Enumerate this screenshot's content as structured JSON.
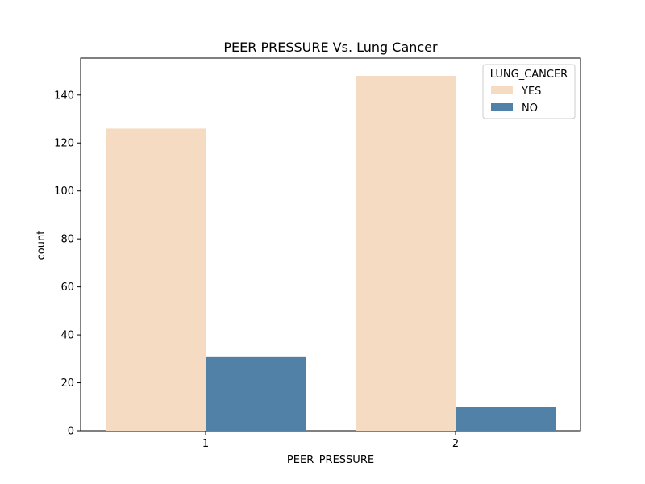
{
  "chart_data": {
    "type": "bar",
    "title": "PEER PRESSURE Vs. Lung Cancer",
    "xlabel": "PEER_PRESSURE",
    "ylabel": "count",
    "categories": [
      "1",
      "2"
    ],
    "series": [
      {
        "name": "YES",
        "values": [
          126,
          148
        ],
        "color": "#f5dbc2"
      },
      {
        "name": "NO",
        "values": [
          31,
          10
        ],
        "color": "#5181a6"
      }
    ],
    "ylim": [
      0,
      155.4
    ],
    "yticks": [
      0,
      20,
      40,
      60,
      80,
      100,
      120,
      140
    ],
    "grid": false,
    "legend": {
      "title": "LUNG_CANCER",
      "position": "top-right"
    }
  }
}
